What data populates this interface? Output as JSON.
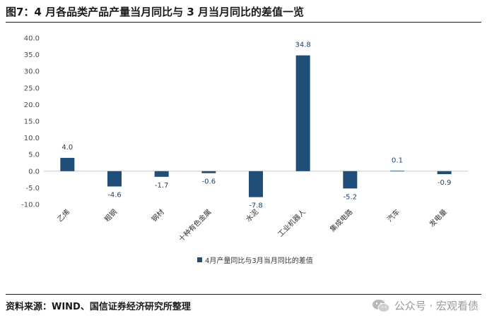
{
  "header": {
    "title": "图7：4 月各品类产品产量当月同比与 3 月当月同比的差值一览"
  },
  "footer": {
    "source": "资料来源：WIND、国信证券经济研究所整理"
  },
  "watermark": {
    "text": "公众号 · 宏观看债",
    "icon": "wechat-icon"
  },
  "colors": {
    "bar": "#1f4e79",
    "label": "#1f3f68"
  },
  "chart_data": {
    "type": "bar",
    "categories": [
      "乙烯",
      "粗钢",
      "钢材",
      "十种有色金属",
      "水泥",
      "工业机器人",
      "集成电路",
      "汽车",
      "发电量"
    ],
    "series": [
      {
        "name": "4月产量同比与3月当月同比的差值",
        "values": [
          4.0,
          -4.6,
          -1.7,
          -0.6,
          -7.8,
          34.8,
          -5.2,
          0.1,
          -0.9
        ]
      }
    ],
    "data_labels": [
      "4.0",
      "-4.6",
      "-1.7",
      "-0.6",
      "-7.8",
      "34.8",
      "-5.2",
      "0.1",
      "-0.9"
    ],
    "yticks": [
      "40.0",
      "35.0",
      "30.0",
      "25.0",
      "20.0",
      "15.0",
      "10.0",
      "5.0",
      "0.0",
      "-5.0",
      "-10.0"
    ],
    "ylim": [
      -10,
      40
    ],
    "legend_position": "bottom",
    "grid": false
  }
}
